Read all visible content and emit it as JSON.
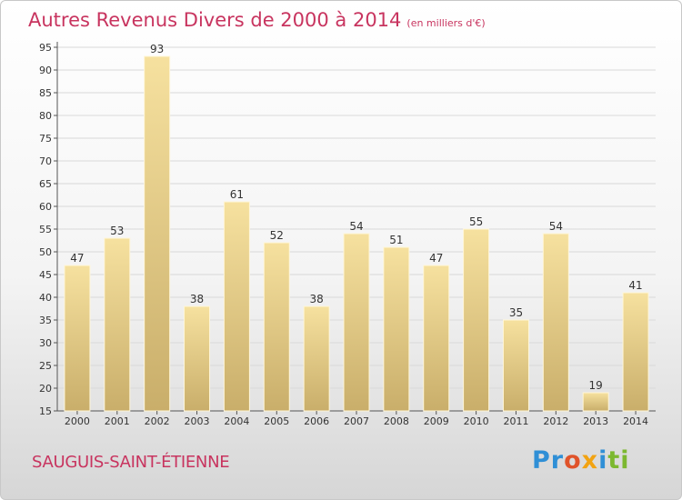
{
  "header": {
    "title": "Autres Revenus Divers de 2000 à 2014",
    "unit": "(en milliers d'€)"
  },
  "footer": {
    "commune": "SAUGUIS-SAINT-ÉTIENNE",
    "logo_text": [
      "Pr",
      "o",
      "x",
      "i",
      "ti"
    ]
  },
  "colors": {
    "title": "#c8345f",
    "bar_top": "#f6e19f",
    "bar_bottom": "#c9ae6a",
    "grid": "#d9d9d9"
  },
  "chart_data": {
    "type": "bar",
    "title": "Autres Revenus Divers de 2000 à 2014",
    "subtitle": "(en milliers d'€)",
    "xlabel": "",
    "ylabel": "",
    "categories": [
      "2000",
      "2001",
      "2002",
      "2003",
      "2004",
      "2005",
      "2006",
      "2007",
      "2008",
      "2009",
      "2010",
      "2011",
      "2012",
      "2013",
      "2014"
    ],
    "values": [
      47,
      53,
      93,
      38,
      61,
      52,
      38,
      54,
      51,
      47,
      55,
      35,
      54,
      19,
      41
    ],
    "ylim": [
      15,
      95
    ],
    "yticks": [
      15,
      20,
      25,
      30,
      35,
      40,
      45,
      50,
      55,
      60,
      65,
      70,
      75,
      80,
      85,
      90,
      95
    ],
    "grid": true,
    "legend": "none"
  }
}
